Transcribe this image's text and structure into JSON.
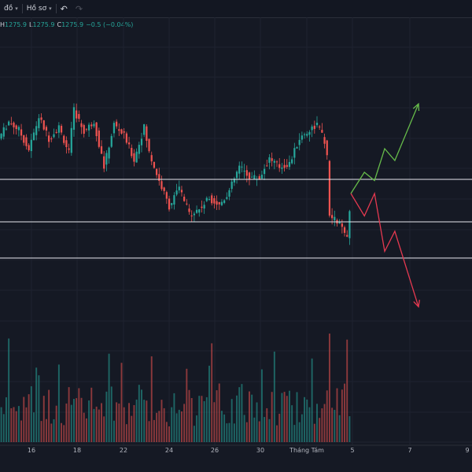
{
  "toolbar": {
    "chart_type_label": "đồ",
    "profile_label": "Hồ sơ",
    "undo_icon": "undo-icon",
    "redo_icon": "redo-icon"
  },
  "ohlc": {
    "h_key": "H",
    "h_val": "1275.9",
    "l_key": "L",
    "l_val": "1275.9",
    "c_key": "C",
    "c_val": "1275.9",
    "change": "−0.5 (−0.04%)"
  },
  "colors": {
    "background": "#151924",
    "grid": "#1f2330",
    "up": "#26a69a",
    "down": "#ef5350",
    "level_line": "#e6e8ee",
    "bull_arrow": "#66bb4a",
    "bear_arrow": "#e53950"
  },
  "chart_data": {
    "type": "candlestick",
    "x_tick_labels": [
      "16",
      "18",
      "22",
      "24",
      "26",
      "30",
      "Tháng Tám",
      "5",
      "7",
      "9"
    ],
    "x_tick_dates": [
      "2024-07-16",
      "2024-07-18",
      "2024-07-22",
      "2024-07-24",
      "2024-07-26",
      "2024-07-30",
      "2024-08-01",
      "2024-08-05",
      "2024-08-07",
      "2024-08-09"
    ],
    "grid": true,
    "horizontal_levels_relative": [
      0.52,
      0.22,
      0.0
    ],
    "price_path": [
      [
        0,
        0.8,
        0.92
      ],
      [
        4,
        0.92,
        0.86
      ],
      [
        8,
        0.86,
        0.72
      ],
      [
        12,
        0.72,
        0.95
      ],
      [
        16,
        0.95,
        0.8
      ],
      [
        20,
        0.8,
        0.88
      ],
      [
        24,
        0.88,
        0.7
      ],
      [
        28,
        0.7,
        1.0
      ],
      [
        30,
        1.0,
        0.85
      ],
      [
        34,
        0.85,
        0.92
      ],
      [
        38,
        0.92,
        0.6
      ],
      [
        42,
        0.6,
        0.9
      ],
      [
        46,
        0.9,
        0.82
      ],
      [
        50,
        0.82,
        0.65
      ],
      [
        54,
        0.65,
        0.88
      ],
      [
        58,
        0.88,
        0.7
      ],
      [
        60,
        0.7,
        0.5
      ],
      [
        64,
        0.5,
        0.32
      ],
      [
        68,
        0.32,
        0.45
      ],
      [
        72,
        0.45,
        0.27
      ],
      [
        76,
        0.27,
        0.3
      ],
      [
        80,
        0.3,
        0.38
      ],
      [
        84,
        0.38,
        0.33
      ],
      [
        88,
        0.33,
        0.43
      ],
      [
        92,
        0.43,
        0.6
      ],
      [
        96,
        0.6,
        0.53
      ],
      [
        100,
        0.53,
        0.52
      ],
      [
        104,
        0.52,
        0.66
      ],
      [
        108,
        0.66,
        0.6
      ],
      [
        112,
        0.6,
        0.62
      ],
      [
        116,
        0.62,
        0.8
      ],
      [
        120,
        0.8,
        0.86
      ],
      [
        124,
        0.86,
        0.9
      ],
      [
        127,
        0.9,
        0.78
      ],
      [
        130,
        0.78,
        0.66
      ],
      [
        131,
        0.66,
        0.25
      ],
      [
        132,
        0.25,
        0.2
      ],
      [
        136,
        0.2,
        0.12
      ],
      [
        138,
        0.12,
        0.05
      ],
      [
        140,
        0.05,
        0.28
      ]
    ],
    "projection_bullish_relative": [
      [
        0.0,
        0.24
      ],
      [
        0.2,
        0.42
      ],
      [
        0.35,
        0.35
      ],
      [
        0.5,
        0.62
      ],
      [
        0.65,
        0.52
      ],
      [
        1.0,
        1.0
      ]
    ],
    "projection_bearish_relative": [
      [
        0.0,
        0.24
      ],
      [
        0.2,
        0.05
      ],
      [
        0.35,
        0.24
      ],
      [
        0.5,
        -0.25
      ],
      [
        0.65,
        -0.08
      ],
      [
        1.0,
        -0.72
      ]
    ]
  }
}
